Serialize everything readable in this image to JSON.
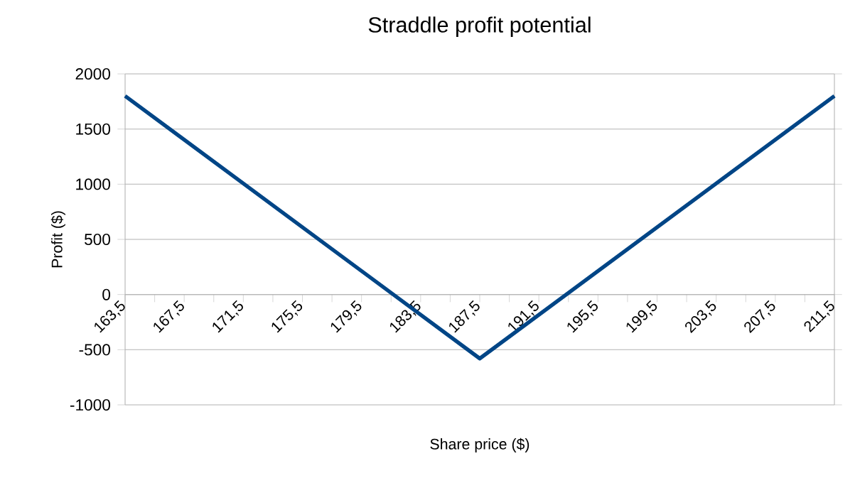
{
  "chart_data": {
    "type": "line",
    "title": "Straddle profit potential",
    "xlabel": "Share price ($)",
    "ylabel": "Profit ($)",
    "series": [
      {
        "color": "#004586",
        "x": [
          163.5,
          187.5,
          211.5
        ],
        "values": [
          1800,
          -580,
          1800
        ]
      }
    ],
    "xlim": [
      163.5,
      211.5
    ],
    "xticks": [
      {
        "value": 163.5,
        "label": "163,5"
      },
      {
        "value": 165.5,
        "label": null
      },
      {
        "value": 167.5,
        "label": "167,5"
      },
      {
        "value": 169.5,
        "label": null
      },
      {
        "value": 171.5,
        "label": "171,5"
      },
      {
        "value": 173.5,
        "label": null
      },
      {
        "value": 175.5,
        "label": "175,5"
      },
      {
        "value": 177.5,
        "label": null
      },
      {
        "value": 179.5,
        "label": "179,5"
      },
      {
        "value": 181.5,
        "label": null
      },
      {
        "value": 183.5,
        "label": "183,5"
      },
      {
        "value": 185.5,
        "label": null
      },
      {
        "value": 187.5,
        "label": "187,5"
      },
      {
        "value": 189.5,
        "label": null
      },
      {
        "value": 191.5,
        "label": "191,5"
      },
      {
        "value": 193.5,
        "label": null
      },
      {
        "value": 195.5,
        "label": "195,5"
      },
      {
        "value": 197.5,
        "label": null
      },
      {
        "value": 199.5,
        "label": "199,5"
      },
      {
        "value": 201.5,
        "label": null
      },
      {
        "value": 203.5,
        "label": "203,5"
      },
      {
        "value": 205.5,
        "label": null
      },
      {
        "value": 207.5,
        "label": "207,5"
      },
      {
        "value": 209.5,
        "label": null
      },
      {
        "value": 211.5,
        "label": "211,5"
      }
    ],
    "ylim": [
      -1000,
      2000
    ],
    "yticks": [
      -1000,
      -500,
      0,
      500,
      1000,
      1500,
      2000
    ],
    "grid": "y"
  }
}
